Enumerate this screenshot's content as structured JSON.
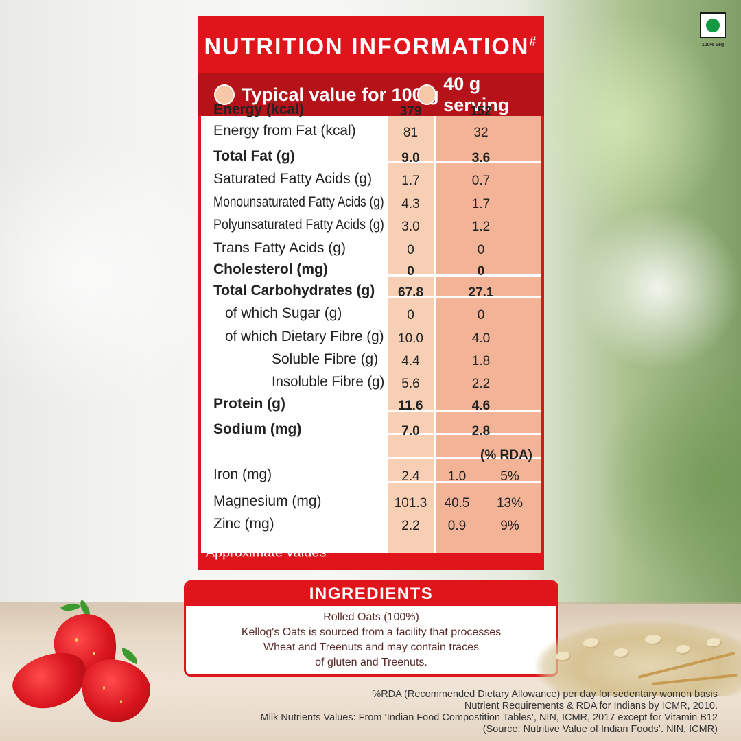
{
  "veg_mark": {
    "label": "100% Veg",
    "icon": "veg-mark-icon",
    "color": "#139a43"
  },
  "nutrition": {
    "title": "NUTRITION INFORMATION",
    "title_mark": "#",
    "col_100g": "Typical value for 100 g",
    "col_serving": "40 g serving",
    "rda_header": "(% RDA)",
    "footnote_mark": "#",
    "footnote": "Approximate values",
    "accent_color": "#e0151c",
    "rows": [
      {
        "label": "Energy (kcal)",
        "v100": "379",
        "vserv": "152"
      },
      {
        "label": "Energy from Fat (kcal)",
        "v100": "81",
        "vserv": "32"
      },
      {
        "label": "Total Fat (g)",
        "v100": "9.0",
        "vserv": "3.6"
      },
      {
        "label": "Saturated Fatty Acids (g)",
        "v100": "1.7",
        "vserv": "0.7"
      },
      {
        "label": "Monounsaturated Fatty Acids (g)",
        "v100": "4.3",
        "vserv": "1.7"
      },
      {
        "label": "Polyunsaturated Fatty Acids (g)",
        "v100": "3.0",
        "vserv": "1.2"
      },
      {
        "label": "Trans Fatty Acids (g)",
        "v100": "0",
        "vserv": "0"
      },
      {
        "label": "Cholesterol (mg)",
        "v100": "0",
        "vserv": "0"
      },
      {
        "label": "Total Carbohydrates (g)",
        "v100": "67.8",
        "vserv": "27.1"
      },
      {
        "label": "of which Sugar (g)",
        "v100": "0",
        "vserv": "0"
      },
      {
        "label": "of which Dietary Fibre (g)",
        "v100": "10.0",
        "vserv": "4.0"
      },
      {
        "label": "Soluble Fibre (g)",
        "v100": "4.4",
        "vserv": "1.8"
      },
      {
        "label": "Insoluble Fibre (g)",
        "v100": "5.6",
        "vserv": "2.2"
      },
      {
        "label": "Protein (g)",
        "v100": "11.6",
        "vserv": "4.6"
      },
      {
        "label": "Sodium (mg)",
        "v100": "7.0",
        "vserv": "2.8"
      }
    ],
    "minerals": [
      {
        "label": "Iron (mg)",
        "v100": "2.4",
        "vserv": "1.0",
        "rda": "5%"
      },
      {
        "label": "Magnesium (mg)",
        "v100": "101.3",
        "vserv": "40.5",
        "rda": "13%"
      },
      {
        "label": "Zinc (mg)",
        "v100": "2.2",
        "vserv": "0.9",
        "rda": "9%"
      }
    ]
  },
  "ingredients": {
    "title": "INGREDIENTS",
    "lines": [
      "Rolled Oats (100%)",
      "Kellog's Oats is sourced from a facility that processes",
      "Wheat and Treenuts and may contain traces",
      "of gluten and Treenuts."
    ]
  },
  "disclaimer": {
    "lines": [
      "%RDA (Recommended Dietary Allowance) per day for sedentary women basis",
      "Nutrient Requirements & RDA for Indians by ICMR, 2010.",
      "Milk Nutrients Values: From ‘Indian Food Compostition Tables’, NIN, ICMR, 2017 except for Vitamin B12",
      "(Source: Nutritive Value of Indian Foods’.  NIN, ICMR)"
    ]
  }
}
